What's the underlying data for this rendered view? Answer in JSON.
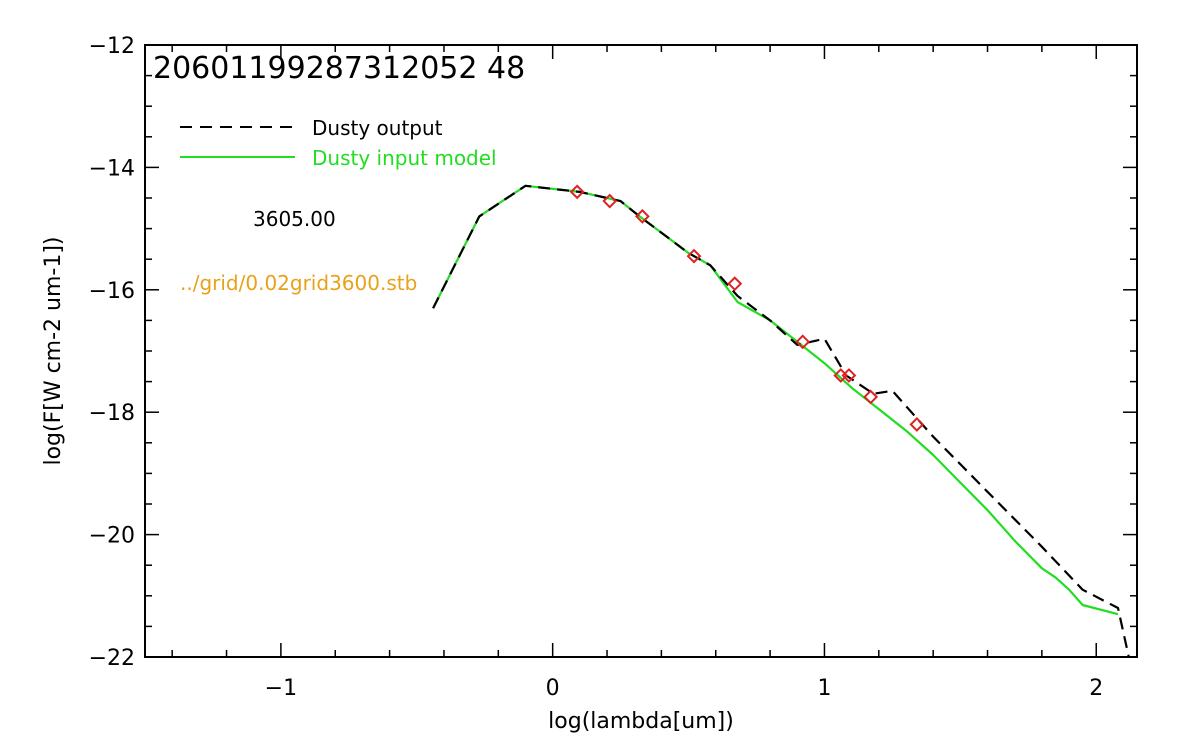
{
  "chart_data": {
    "type": "line",
    "title": "20601199287312052 48",
    "xlabel": "log(lambda[um])",
    "ylabel": "log(F[W cm-2 um-1])",
    "xlim": [
      -1.5,
      2.15
    ],
    "ylim": [
      -22,
      -12
    ],
    "x_ticks": [
      -1,
      0,
      1,
      2
    ],
    "x_tick_labels": [
      "−1",
      "0",
      "1",
      "2"
    ],
    "y_ticks": [
      -22,
      -20,
      -18,
      -16,
      -14,
      -12
    ],
    "y_tick_labels": [
      "−22",
      "−20",
      "−18",
      "−16",
      "−14",
      "−12"
    ],
    "grid": false,
    "legend_position": "top-left",
    "colors": {
      "title": "#dd2222",
      "output": "#000000",
      "input": "#22dd22",
      "markers": "#dd2222",
      "path_label": "#e8a21a",
      "temp_label": "#000000"
    },
    "series": [
      {
        "name": "Dusty output",
        "style": "dashed",
        "x": [
          -0.44,
          -0.27,
          -0.1,
          0.1,
          0.25,
          0.32,
          0.5,
          0.58,
          0.68,
          0.8,
          0.9,
          1.0,
          1.08,
          1.18,
          1.25,
          1.4,
          1.6,
          1.8,
          1.95,
          2.08,
          2.12
        ],
        "y": [
          -16.3,
          -14.8,
          -14.3,
          -14.4,
          -14.55,
          -14.8,
          -15.4,
          -15.6,
          -16.1,
          -16.5,
          -16.9,
          -16.8,
          -17.4,
          -17.7,
          -17.65,
          -18.4,
          -19.3,
          -20.2,
          -20.9,
          -21.2,
          -22.0
        ]
      },
      {
        "name": "Dusty input model",
        "style": "solid",
        "x": [
          -0.44,
          -0.27,
          -0.1,
          0.1,
          0.25,
          0.32,
          0.5,
          0.58,
          0.68,
          0.8,
          0.9,
          1.0,
          1.1,
          1.2,
          1.3,
          1.4,
          1.5,
          1.6,
          1.7,
          1.8,
          1.85,
          1.9,
          1.95,
          2.08
        ],
        "y": [
          -16.3,
          -14.8,
          -14.3,
          -14.4,
          -14.55,
          -14.8,
          -15.4,
          -15.6,
          -16.2,
          -16.5,
          -16.85,
          -17.2,
          -17.6,
          -17.95,
          -18.3,
          -18.7,
          -19.15,
          -19.6,
          -20.1,
          -20.55,
          -20.7,
          -20.9,
          -21.15,
          -21.3
        ]
      }
    ],
    "markers": {
      "shape": "diamond",
      "x": [
        0.09,
        0.21,
        0.33,
        0.52,
        0.67,
        0.92,
        1.06,
        1.09,
        1.17,
        1.34
      ],
      "y": [
        -14.4,
        -14.55,
        -14.8,
        -15.45,
        -15.9,
        -16.85,
        -17.4,
        -17.4,
        -17.75,
        -18.2
      ]
    },
    "legend": [
      {
        "label": "Dusty output",
        "style": "dashed",
        "color": "#000000"
      },
      {
        "label": "Dusty input model",
        "style": "solid",
        "color": "#22dd22"
      }
    ],
    "annotations": {
      "temperature": "3605.00",
      "path": "../grid/0.02grid3600.stb"
    }
  }
}
